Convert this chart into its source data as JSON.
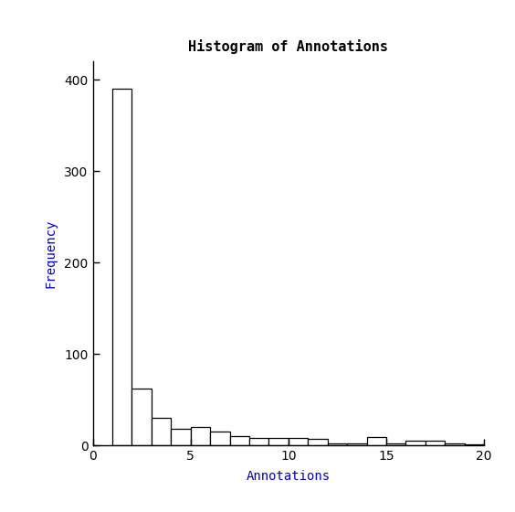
{
  "title": "Histogram of Annotations",
  "xlabel": "Annotations",
  "ylabel": "Frequency",
  "title_color": "#000000",
  "label_color": "#0000CC",
  "bar_color": "#ffffff",
  "bar_edge_color": "#000000",
  "background_color": "#ffffff",
  "xlim": [
    0,
    20
  ],
  "ylim": [
    0,
    420
  ],
  "yticks": [
    0,
    100,
    200,
    300,
    400
  ],
  "xticks": [
    0,
    5,
    10,
    15,
    20
  ],
  "bin_left_edges": [
    1,
    2,
    3,
    4,
    5,
    6,
    7,
    8,
    9,
    10,
    11,
    12,
    13,
    14,
    15,
    16,
    17,
    18,
    19,
    20
  ],
  "frequencies": [
    390,
    62,
    30,
    18,
    20,
    15,
    10,
    8,
    8,
    8,
    7,
    2,
    2,
    9,
    2,
    5,
    5,
    2,
    1,
    5
  ]
}
